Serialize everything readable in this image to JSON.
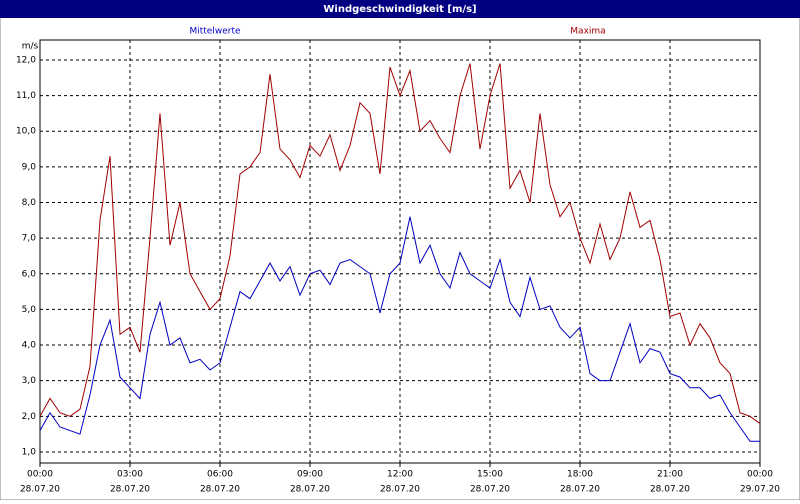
{
  "chart_data": {
    "type": "line",
    "title": "Windgeschwindigkeit [m/s]",
    "y_label": "m/s",
    "x": [
      0,
      20,
      40,
      60,
      80,
      100,
      120,
      140,
      160,
      180,
      200,
      220,
      240,
      260,
      280,
      300,
      320,
      340,
      360,
      380,
      400,
      420,
      440,
      460,
      480,
      500,
      520,
      540,
      560,
      580,
      600,
      620,
      640,
      660,
      680,
      700,
      720,
      740,
      760,
      780,
      800,
      820,
      840,
      860,
      880,
      900,
      920,
      940,
      960,
      980,
      1000,
      1020,
      1040,
      1060,
      1080,
      1100,
      1120,
      1140,
      1160,
      1180,
      1200,
      1220,
      1240,
      1260,
      1280,
      1300,
      1320,
      1340,
      1360,
      1380,
      1400,
      1420,
      1440
    ],
    "series": [
      {
        "name": "Mittelwerte",
        "color": "#0000c0",
        "values": [
          1.6,
          2.1,
          1.7,
          1.6,
          1.5,
          2.6,
          4.0,
          4.7,
          3.1,
          2.8,
          2.5,
          4.3,
          5.2,
          4.0,
          4.2,
          3.5,
          3.6,
          3.3,
          3.5,
          4.5,
          5.5,
          5.3,
          5.8,
          6.3,
          5.8,
          6.2,
          5.4,
          6.0,
          6.1,
          5.7,
          6.3,
          6.4,
          6.2,
          6.0,
          4.9,
          6.0,
          6.3,
          7.6,
          6.3,
          6.8,
          6.0,
          5.6,
          6.6,
          6.0,
          5.8,
          5.6,
          6.4,
          5.2,
          4.8,
          5.9,
          5.0,
          5.1,
          4.5,
          4.2,
          4.5,
          3.2,
          3.0,
          3.0,
          3.8,
          4.6,
          3.5,
          3.9,
          3.8,
          3.2,
          3.1,
          2.8,
          2.8,
          2.5,
          2.6,
          2.1,
          1.7,
          1.3,
          1.3
        ]
      },
      {
        "name": "Maxima",
        "color": "#a00000",
        "values": [
          2.0,
          2.5,
          2.1,
          2.0,
          2.2,
          3.4,
          7.5,
          9.3,
          4.3,
          4.5,
          3.8,
          7.0,
          10.5,
          6.8,
          8.0,
          6.0,
          5.5,
          5.0,
          5.3,
          6.5,
          8.8,
          9.0,
          9.4,
          11.6,
          9.5,
          9.2,
          8.7,
          9.6,
          9.3,
          9.9,
          8.9,
          9.6,
          10.8,
          10.5,
          8.8,
          11.8,
          11.0,
          11.7,
          10.0,
          10.3,
          9.8,
          9.4,
          11.0,
          11.9,
          9.5,
          11.0,
          11.9,
          8.4,
          8.9,
          8.0,
          10.5,
          8.5,
          7.6,
          8.0,
          7.0,
          6.3,
          7.4,
          6.4,
          7.0,
          8.3,
          7.3,
          7.5,
          6.4,
          4.8,
          4.9,
          4.0,
          4.6,
          4.2,
          3.5,
          3.2,
          2.1,
          2.0,
          1.8
        ]
      }
    ],
    "xlim": [
      0,
      1440
    ],
    "xticks": [
      {
        "value": 0,
        "label": [
          "00:00",
          "28.07.20"
        ]
      },
      {
        "value": 180,
        "label": [
          "03:00",
          "28.07.20"
        ]
      },
      {
        "value": 360,
        "label": [
          "06:00",
          "28.07.20"
        ]
      },
      {
        "value": 540,
        "label": [
          "09:00",
          "28.07.20"
        ]
      },
      {
        "value": 720,
        "label": [
          "12:00",
          "28.07.20"
        ]
      },
      {
        "value": 900,
        "label": [
          "15:00",
          "28.07.20"
        ]
      },
      {
        "value": 1080,
        "label": [
          "18:00",
          "28.07.20"
        ]
      },
      {
        "value": 1260,
        "label": [
          "21:00",
          "28.07.20"
        ]
      },
      {
        "value": 1440,
        "label": [
          "00:00",
          "29.07.20"
        ]
      }
    ],
    "ylim": [
      0.69,
      12.56
    ],
    "yticks": [
      {
        "value": 1,
        "label": "1,0"
      },
      {
        "value": 2,
        "label": "2,0"
      },
      {
        "value": 3,
        "label": "3,0"
      },
      {
        "value": 4,
        "label": "4,0"
      },
      {
        "value": 5,
        "label": "5,0"
      },
      {
        "value": 6,
        "label": "6,0"
      },
      {
        "value": 7,
        "label": "7,0"
      },
      {
        "value": 8,
        "label": "8,0"
      },
      {
        "value": 9,
        "label": "9,0"
      },
      {
        "value": 10,
        "label": "10,0"
      },
      {
        "value": 11,
        "label": "11,0"
      },
      {
        "value": 12,
        "label": "12,0"
      }
    ],
    "grid": true
  }
}
